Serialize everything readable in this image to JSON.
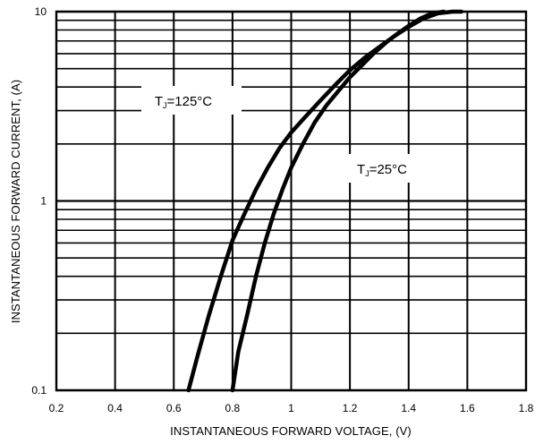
{
  "chart_data": {
    "type": "line",
    "title": "",
    "xlabel": "INSTANTANEOUS FORWARD VOLTAGE, (V)",
    "ylabel": "INSTANTANEOUS FORWARD CURRENT, (A)",
    "xlim": [
      0.2,
      1.8
    ],
    "ylim": [
      0.1,
      10
    ],
    "yscale": "log",
    "grid": true,
    "x_ticks": [
      "0.2",
      "0.4",
      "0.6",
      "0.8",
      "1",
      "1.2",
      "1.4",
      "1.6",
      "1.8"
    ],
    "y_ticks": [
      "0.1",
      "1",
      "10"
    ],
    "series": [
      {
        "name": "TJ=125°C",
        "label_main": "T",
        "label_sub": "J",
        "label_rest": "=125°C",
        "x": [
          0.65,
          0.68,
          0.72,
          0.76,
          0.8,
          0.84,
          0.88,
          0.92,
          0.96,
          1.0,
          1.05,
          1.1,
          1.15,
          1.2,
          1.25,
          1.3,
          1.35,
          1.4,
          1.45,
          1.5,
          1.55,
          1.58
        ],
        "y": [
          0.1,
          0.15,
          0.25,
          0.4,
          0.62,
          0.85,
          1.15,
          1.5,
          1.9,
          2.3,
          2.8,
          3.4,
          4.1,
          4.9,
          5.7,
          6.5,
          7.4,
          8.3,
          9.2,
          9.8,
          10.0,
          10.0
        ]
      },
      {
        "name": "TJ=25°C",
        "label_main": "T",
        "label_sub": "J",
        "label_rest": "=25°C",
        "x": [
          0.8,
          0.82,
          0.85,
          0.88,
          0.91,
          0.94,
          0.97,
          1.0,
          1.04,
          1.08,
          1.12,
          1.16,
          1.2,
          1.24,
          1.28,
          1.32,
          1.36,
          1.4,
          1.44,
          1.48,
          1.52
        ],
        "y": [
          0.1,
          0.16,
          0.25,
          0.4,
          0.6,
          0.85,
          1.15,
          1.5,
          2.0,
          2.6,
          3.2,
          3.8,
          4.5,
          5.2,
          6.0,
          6.8,
          7.6,
          8.4,
          9.2,
          9.8,
          10.0
        ]
      }
    ]
  }
}
